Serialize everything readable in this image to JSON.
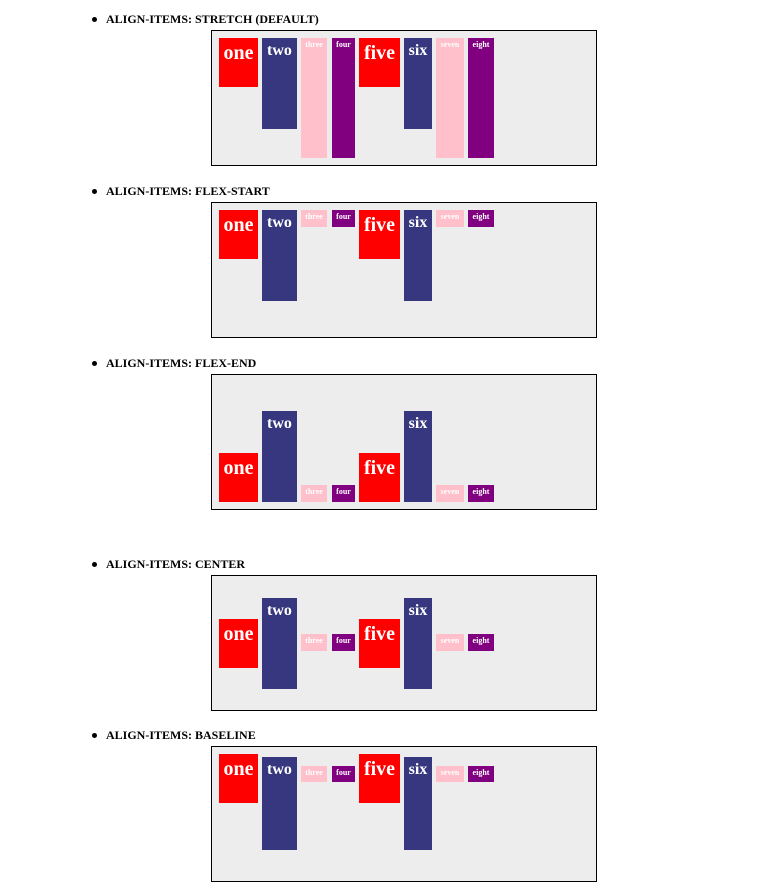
{
  "sections": [
    {
      "heading": "ALIGN-ITEMS: STRETCH (DEFAULT)"
    },
    {
      "heading": "ALIGN-ITEMS: FLEX-START"
    },
    {
      "heading": "ALIGN-ITEMS: FLEX-END"
    },
    {
      "heading": "ALIGN-ITEMS: CENTER"
    },
    {
      "heading": "ALIGN-ITEMS: BASELINE"
    }
  ],
  "items": [
    "one",
    "two",
    "three",
    "four",
    "five",
    "six",
    "seven",
    "eight"
  ],
  "colors": {
    "red": "#ff0000",
    "navy": "#37377f",
    "pink": "#ffc0cb",
    "purple": "#800080",
    "container_bg": "#ededed"
  }
}
